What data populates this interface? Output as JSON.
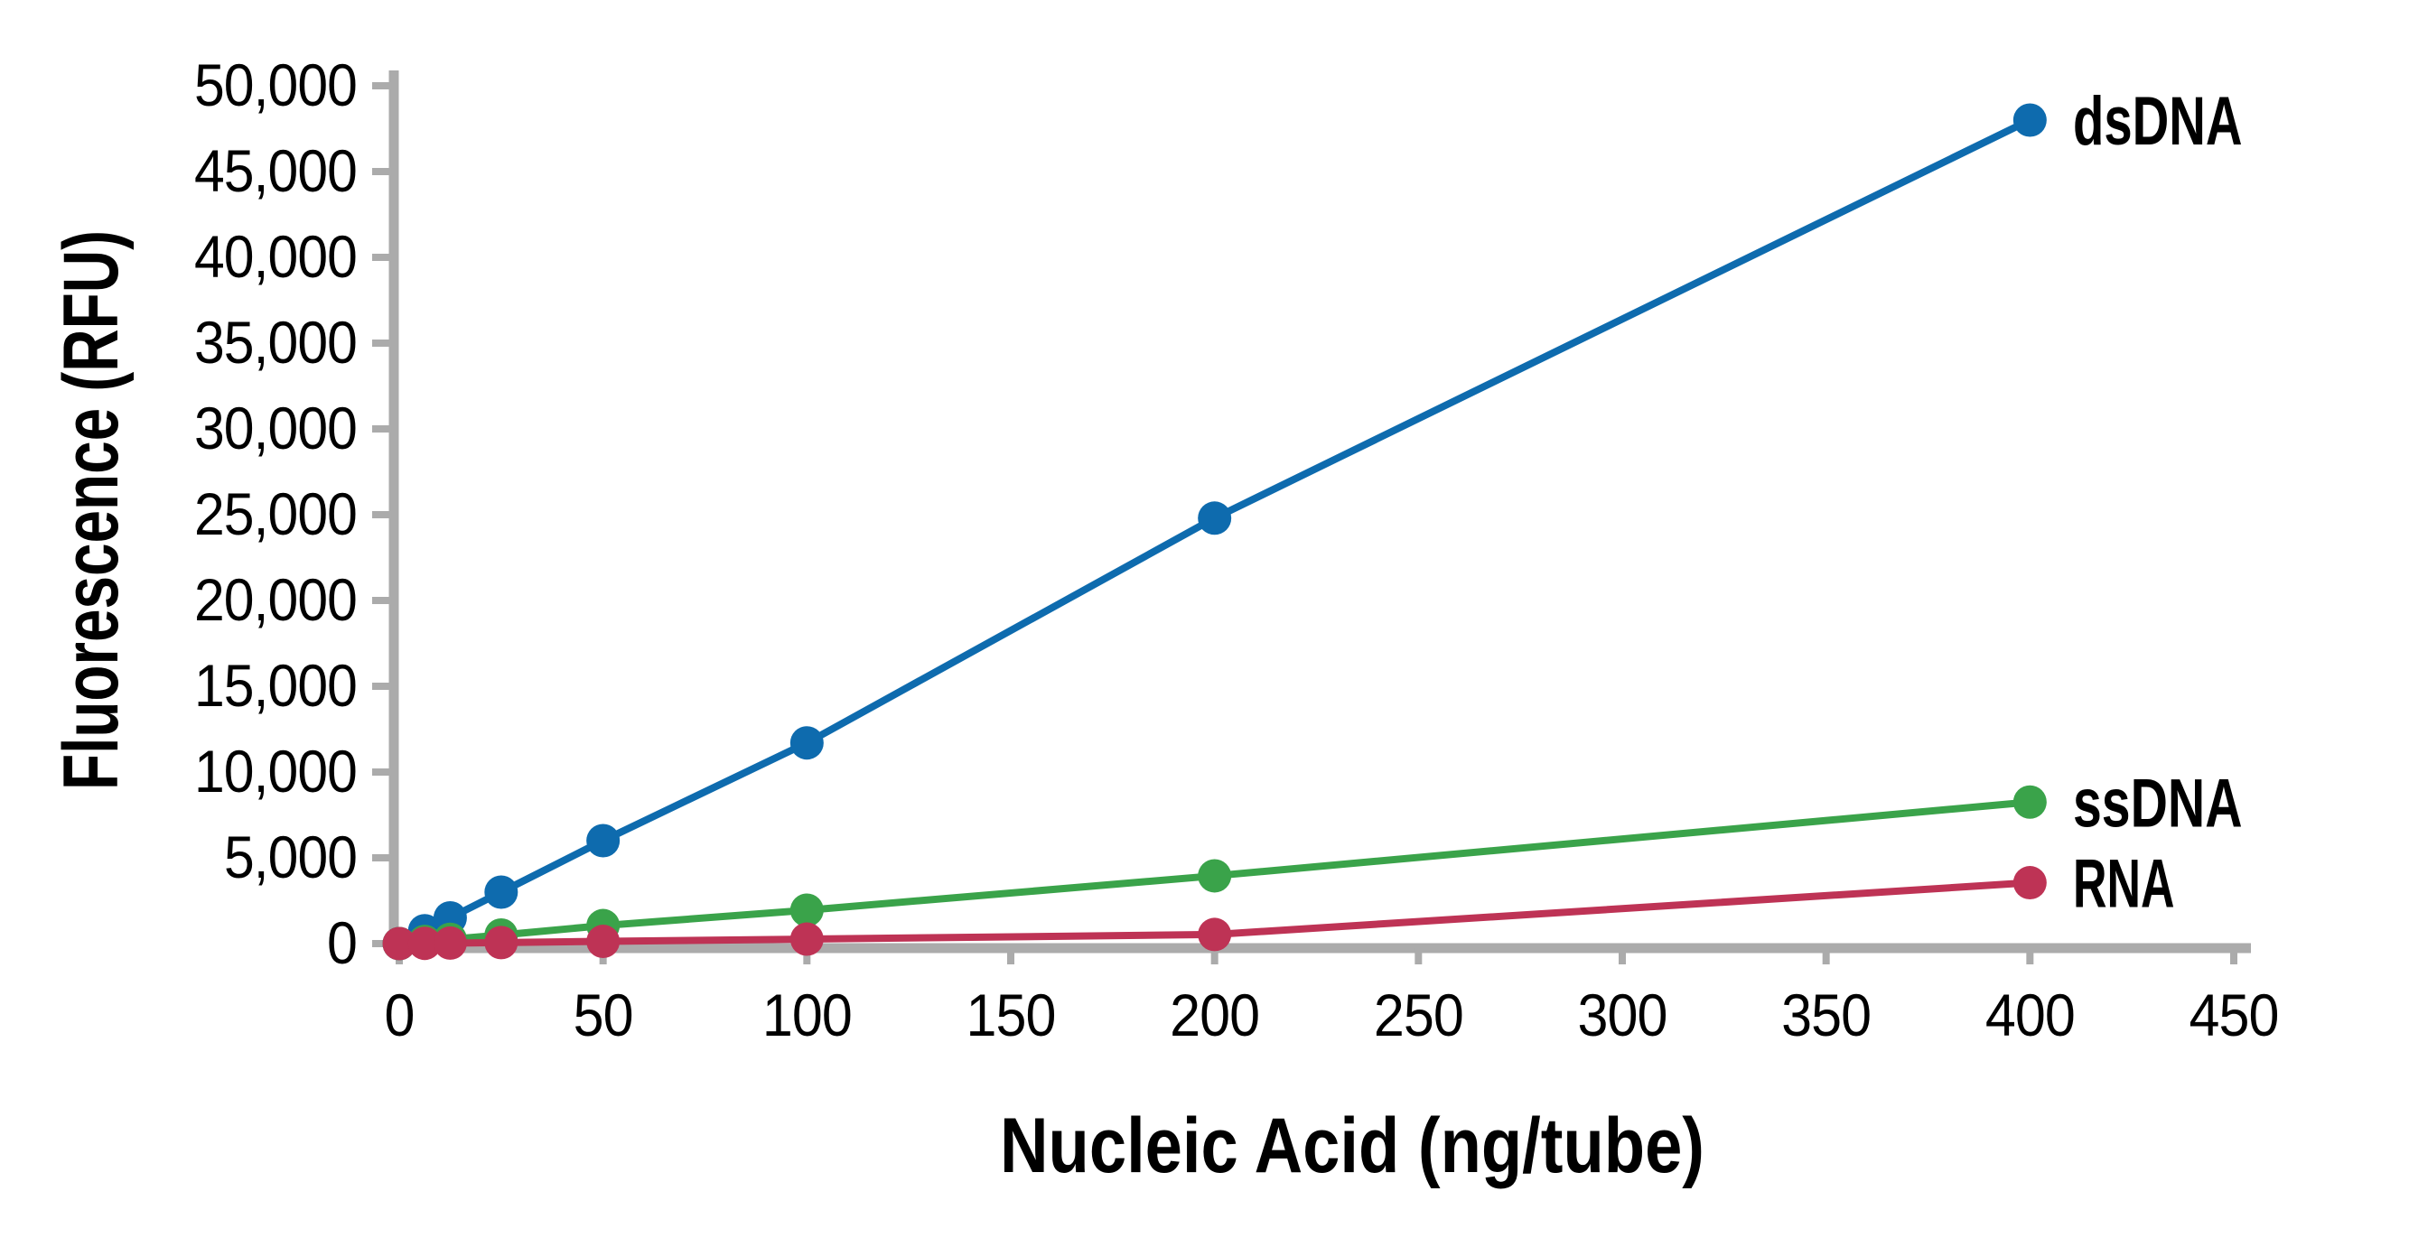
{
  "chart_data": {
    "type": "line",
    "title": "",
    "xlabel": "Nucleic Acid (ng/tube)",
    "ylabel": "Fluorescence (RFU)",
    "xlim": [
      0,
      450
    ],
    "ylim": [
      0,
      50000
    ],
    "grid": false,
    "legend_position": "line-end-labels",
    "background_color": "#FFFFFF",
    "axis_color": "#ABABAB",
    "text_color": "#000000",
    "x_ticks": {
      "values": [
        0,
        50,
        100,
        150,
        200,
        250,
        300,
        350,
        400,
        450
      ],
      "labels": [
        "0",
        "50",
        "100",
        "150",
        "200",
        "250",
        "300",
        "350",
        "400",
        "450"
      ]
    },
    "y_ticks": {
      "values": [
        0,
        5000,
        10000,
        15000,
        20000,
        25000,
        30000,
        35000,
        40000,
        45000,
        50000
      ],
      "labels": [
        "0",
        "5,000",
        "10,000",
        "15,000",
        "20,000",
        "25,000",
        "30,000",
        "35,000",
        "40,000",
        "45,000",
        "50,000"
      ]
    },
    "x": [
      0,
      6.25,
      12.5,
      25,
      50,
      100,
      200,
      400
    ],
    "series": [
      {
        "name": "dsDNA",
        "color": "#0E6BAE",
        "values": [
          0,
          750,
          1500,
          3000,
          6000,
          11700,
          24800,
          48000
        ]
      },
      {
        "name": "ssDNA",
        "color": "#3AA34A",
        "values": [
          0,
          125,
          250,
          500,
          1050,
          1950,
          3950,
          8250
        ]
      },
      {
        "name": "RNA",
        "color": "#BE3355",
        "values": [
          0,
          15,
          30,
          60,
          130,
          260,
          530,
          3550
        ]
      }
    ]
  }
}
